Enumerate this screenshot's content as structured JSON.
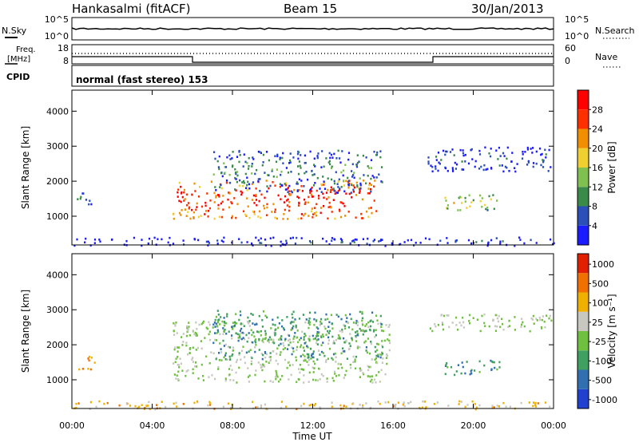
{
  "header": {
    "site": "Hankasalmi (fitACF)",
    "beam": "Beam 15",
    "date": "30/Jan/2013"
  },
  "strip": {
    "nsky_label": "N.Sky",
    "nsky_ticks": [
      "10^5",
      "10^0"
    ],
    "nsearch_label": "N.Search",
    "nsearch_ticks": [
      "10^5",
      "10^0"
    ],
    "freq_label_1": "Freq.",
    "freq_label_2": "[MHz]",
    "freq_ticks": [
      "18",
      "8"
    ],
    "nave_label": "Nave",
    "nave_ticks": [
      "60",
      "0"
    ],
    "cpid_label": "CPID",
    "cpid_text": "normal (fast stereo) 153"
  },
  "chart_data": [
    {
      "type": "heatmap",
      "title": "",
      "ylabel": "Slant Range [km]",
      "xlabel": "Time UT",
      "x_range_hours": [
        0,
        24
      ],
      "ylim": [
        180,
        4600
      ],
      "yticks": [
        "1000",
        "2000",
        "3000",
        "4000"
      ],
      "colorbar_label": "Power [dB]",
      "colorbar_ticks": [
        "4",
        "8",
        "12",
        "16",
        "20",
        "24",
        "28"
      ],
      "colors": [
        "#1b1bff",
        "#2a4fb8",
        "#3a8a4a",
        "#80c050",
        "#f0d030",
        "#f09000",
        "#ff3000",
        "#ff0000"
      ],
      "blobs": [
        {
          "t0": 5.0,
          "t1": 15.2,
          "r0": 950,
          "r1": 2050,
          "level": 0.88
        },
        {
          "t0": 7.0,
          "t1": 15.5,
          "r0": 1700,
          "r1": 2900,
          "level": 0.3
        },
        {
          "t0": 18.5,
          "t1": 21.3,
          "r0": 1200,
          "r1": 1650,
          "level": 0.55
        },
        {
          "t0": 17.6,
          "t1": 23.9,
          "r0": 2300,
          "r1": 3000,
          "level": 0.2
        },
        {
          "t0": 0.0,
          "t1": 24.0,
          "r0": 180,
          "r1": 420,
          "level": 0.15
        },
        {
          "t0": 0.2,
          "t1": 1.1,
          "r0": 1300,
          "r1": 1700,
          "level": 0.25
        }
      ]
    },
    {
      "type": "heatmap",
      "title": "",
      "ylabel": "Slant Range [km]",
      "xlabel": "Time UT",
      "x_range_hours": [
        0,
        24
      ],
      "ylim": [
        180,
        4600
      ],
      "yticks": [
        "1000",
        "2000",
        "3000",
        "4000"
      ],
      "xticks": [
        "00:00",
        "04:00",
        "08:00",
        "12:00",
        "16:00",
        "20:00",
        "00:00"
      ],
      "colorbar_label": "Velocity [m s⁻¹]",
      "colorbar_ticks": [
        "1000",
        "500",
        "100",
        "25",
        "-25",
        "-100",
        "-500",
        "-1000"
      ],
      "colors": [
        "#2040d0",
        "#3070b0",
        "#40a060",
        "#70c040",
        "#c8c8c0",
        "#f0b000",
        "#f07000",
        "#e02000"
      ],
      "blobs": [
        {
          "t0": 5.0,
          "t1": 15.8,
          "r0": 950,
          "r1": 2700,
          "level": 0.5
        },
        {
          "t0": 7.0,
          "t1": 15.5,
          "r0": 1600,
          "r1": 3000,
          "level": 0.3
        },
        {
          "t0": 18.5,
          "t1": 21.3,
          "r0": 1150,
          "r1": 1600,
          "level": 0.3
        },
        {
          "t0": 17.6,
          "t1": 23.9,
          "r0": 2400,
          "r1": 2900,
          "level": 0.5
        },
        {
          "t0": 0.0,
          "t1": 24.0,
          "r0": 180,
          "r1": 420,
          "level": 0.65
        },
        {
          "t0": 0.2,
          "t1": 1.1,
          "r0": 1300,
          "r1": 1700,
          "level": 0.75
        }
      ]
    }
  ]
}
